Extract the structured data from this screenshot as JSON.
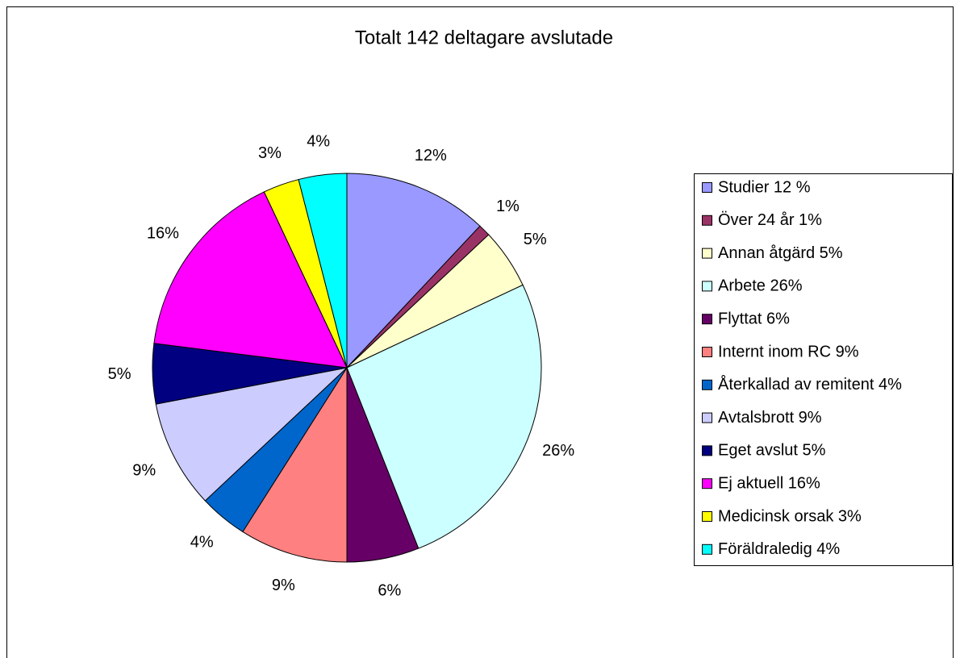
{
  "chart_data": {
    "type": "pie",
    "title": "Totalt 142 deltagare avslutade",
    "categories": [
      "Studier 12 %",
      "Över 24 år 1%",
      "Annan åtgärd 5%",
      "Arbete 26%",
      "Flyttat 6%",
      "Internt inom RC 9%",
      "Återkallad av remitent 4%",
      "Avtalsbrott 9%",
      "Eget avslut 5%",
      "Ej aktuell 16%",
      "Medicinsk orsak 3%",
      "Föräldraledig 4%"
    ],
    "values": [
      12,
      1,
      5,
      26,
      6,
      9,
      4,
      9,
      5,
      16,
      3,
      4
    ],
    "value_labels": [
      "12%",
      "1%",
      "5%",
      "26%",
      "6%",
      "9%",
      "4%",
      "9%",
      "5%",
      "16%",
      "3%",
      "4%"
    ],
    "colors": [
      "#9999ff",
      "#993366",
      "#ffffcc",
      "#ccffff",
      "#660066",
      "#ff8080",
      "#0066cc",
      "#ccccff",
      "#000080",
      "#ff00ff",
      "#ffff00",
      "#00ffff"
    ],
    "legend": "right"
  }
}
